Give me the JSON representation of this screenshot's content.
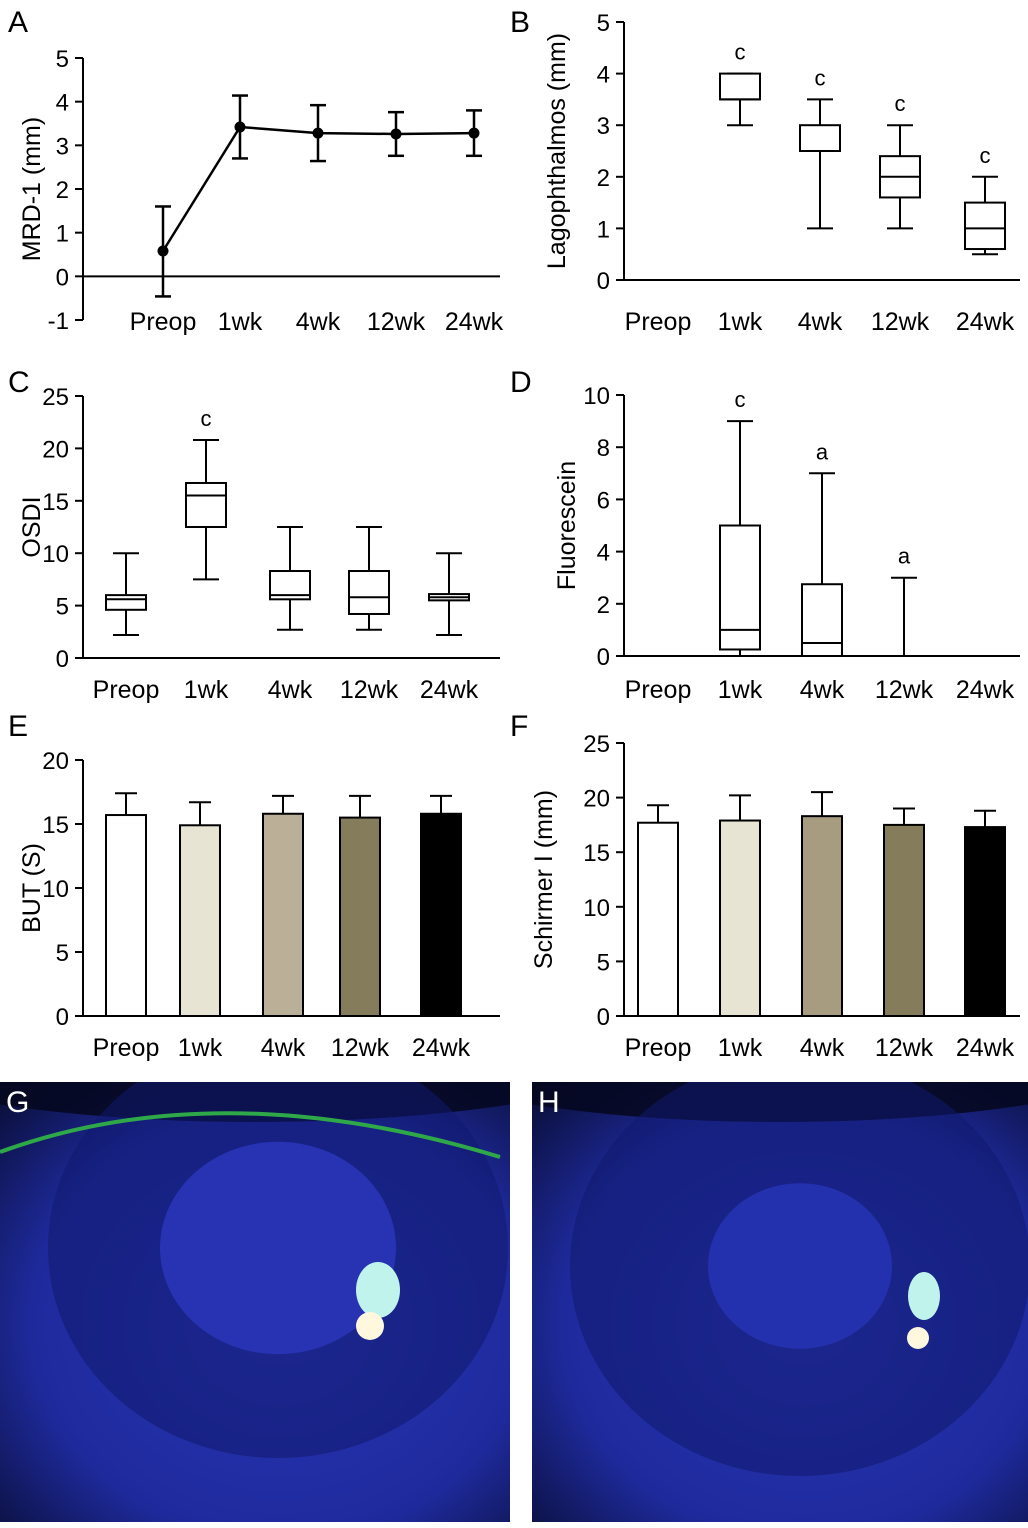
{
  "chart_data": [
    {
      "panel": "A",
      "type": "line",
      "ylabel": "MRD-1 (mm)",
      "categories": [
        "Preop",
        "1wk",
        "4wk",
        "12wk",
        "24wk"
      ],
      "ylim": [
        -1,
        5
      ],
      "yticks": [
        -1,
        0,
        1,
        2,
        3,
        4,
        5
      ],
      "series": [
        {
          "values": [
            0.58,
            3.42,
            3.28,
            3.26,
            3.28
          ],
          "error_low": [
            -0.46,
            2.7,
            2.64,
            2.76,
            2.76
          ],
          "error_high": [
            1.6,
            4.14,
            3.92,
            3.76,
            3.8
          ]
        }
      ]
    },
    {
      "panel": "B",
      "type": "box",
      "ylabel": "Lagophthalmos (mm)",
      "categories": [
        "Preop",
        "1wk",
        "4wk",
        "12wk",
        "24wk"
      ],
      "ylim": [
        0,
        5
      ],
      "yticks": [
        0,
        1,
        2,
        3,
        4,
        5
      ],
      "boxes": [
        {
          "min": 0,
          "q1": 0,
          "median": 0,
          "q3": 0,
          "max": 0,
          "sig": ""
        },
        {
          "min": 3,
          "q1": 3.5,
          "median": 3.5,
          "q3": 4,
          "max": 4,
          "sig": "c"
        },
        {
          "min": 1,
          "q1": 2.5,
          "median": 2.5,
          "q3": 3,
          "max": 3.5,
          "sig": "c"
        },
        {
          "min": 1,
          "q1": 1.6,
          "median": 2,
          "q3": 2.4,
          "max": 3,
          "sig": "c"
        },
        {
          "min": 0.5,
          "q1": 0.6,
          "median": 1,
          "q3": 1.5,
          "max": 2,
          "sig": "c"
        }
      ]
    },
    {
      "panel": "C",
      "type": "box",
      "ylabel": "OSDI",
      "categories": [
        "Preop",
        "1wk",
        "4wk",
        "12wk",
        "24wk"
      ],
      "ylim": [
        0,
        25
      ],
      "yticks": [
        0,
        5,
        10,
        15,
        20,
        25
      ],
      "boxes": [
        {
          "min": 2.2,
          "q1": 4.6,
          "median": 5.6,
          "q3": 6,
          "max": 10,
          "sig": ""
        },
        {
          "min": 7.5,
          "q1": 12.5,
          "median": 15.5,
          "q3": 16.7,
          "max": 20.8,
          "sig": "c"
        },
        {
          "min": 2.7,
          "q1": 5.6,
          "median": 6,
          "q3": 8.3,
          "max": 12.5,
          "sig": ""
        },
        {
          "min": 2.7,
          "q1": 4.2,
          "median": 5.8,
          "q3": 8.3,
          "max": 12.5,
          "sig": ""
        },
        {
          "min": 2.2,
          "q1": 5.5,
          "median": 5.8,
          "q3": 6.1,
          "max": 10,
          "sig": ""
        }
      ]
    },
    {
      "panel": "D",
      "type": "box",
      "ylabel": "Fluorescein",
      "categories": [
        "Preop",
        "1wk",
        "4wk",
        "12wk",
        "24wk"
      ],
      "ylim": [
        0,
        10
      ],
      "yticks": [
        0,
        2,
        4,
        6,
        8,
        10
      ],
      "boxes": [
        {
          "min": 0,
          "q1": 0,
          "median": 0,
          "q3": 0,
          "max": 0,
          "sig": ""
        },
        {
          "min": 0,
          "q1": 0.25,
          "median": 1,
          "q3": 5,
          "max": 9,
          "sig": "c"
        },
        {
          "min": 0,
          "q1": 0,
          "median": 0.5,
          "q3": 2.75,
          "max": 7,
          "sig": "a"
        },
        {
          "min": 0,
          "q1": 0,
          "median": 0,
          "q3": 0,
          "max": 3,
          "sig": "a"
        },
        {
          "min": 0,
          "q1": 0,
          "median": 0,
          "q3": 0,
          "max": 0,
          "sig": ""
        }
      ]
    },
    {
      "panel": "E",
      "type": "bar",
      "ylabel": "BUT (S)",
      "categories": [
        "Preop",
        "1wk",
        "4wk",
        "12wk",
        "24wk"
      ],
      "ylim": [
        0,
        20
      ],
      "yticks": [
        0,
        5,
        10,
        15,
        20
      ],
      "values": [
        15.7,
        14.9,
        15.8,
        15.5,
        15.8
      ],
      "error_high": [
        17.4,
        16.7,
        17.2,
        17.2,
        17.2
      ],
      "colors": [
        "#ffffff",
        "#e8e4d4",
        "#b9b097",
        "#857c5b",
        "#000000"
      ]
    },
    {
      "panel": "F",
      "type": "bar",
      "ylabel": "Schirmer I (mm)",
      "categories": [
        "Preop",
        "1wk",
        "4wk",
        "12wk",
        "24wk"
      ],
      "ylim": [
        0,
        25
      ],
      "yticks": [
        0,
        5,
        10,
        15,
        20,
        25
      ],
      "values": [
        17.7,
        17.9,
        18.3,
        17.5,
        17.3
      ],
      "error_high": [
        19.3,
        20.2,
        20.5,
        19.0,
        18.8
      ],
      "colors": [
        "#ffffff",
        "#e8e4d4",
        "#a79c80",
        "#857c5b",
        "#000000"
      ]
    }
  ],
  "photos": [
    {
      "panel": "G",
      "background": "#1e2a9c",
      "pupil": "#2733b2",
      "reflex": "#bff3ec",
      "glint": "#fff7de",
      "stain_line": "#2fa84a"
    },
    {
      "panel": "H",
      "background": "#1e2a9c",
      "pupil": "#2431ae",
      "reflex": "#bff3ec",
      "glint": "#fff7de"
    }
  ]
}
